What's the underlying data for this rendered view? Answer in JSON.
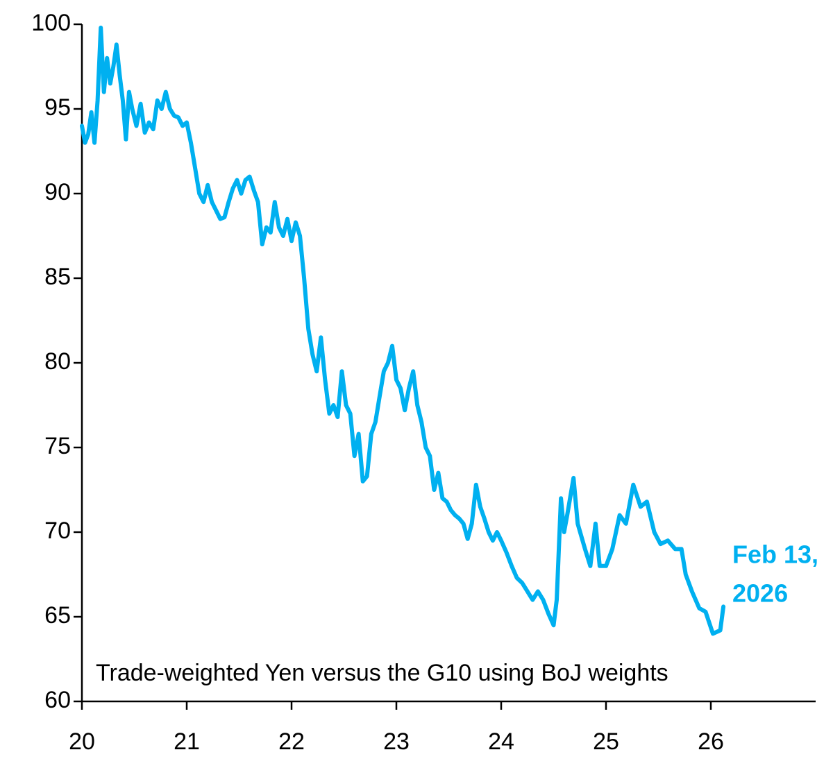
{
  "chart_data": {
    "type": "line",
    "subtitle": "Trade-weighted Yen versus the G10 using BoJ weights",
    "annotation_lines": [
      "Feb 13,",
      "2026"
    ],
    "xlim": [
      20,
      27
    ],
    "xticks": [
      20,
      21,
      22,
      23,
      24,
      25,
      26
    ],
    "ylim": [
      60,
      100
    ],
    "yticks": [
      60,
      65,
      70,
      75,
      80,
      85,
      90,
      95,
      100
    ],
    "grid": false,
    "x": [
      20.0,
      20.03,
      20.06,
      20.09,
      20.12,
      20.15,
      20.18,
      20.21,
      20.24,
      20.27,
      20.3,
      20.33,
      20.36,
      20.39,
      20.42,
      20.45,
      20.48,
      20.52,
      20.56,
      20.6,
      20.64,
      20.68,
      20.72,
      20.76,
      20.8,
      20.84,
      20.88,
      20.92,
      20.96,
      21.0,
      21.04,
      21.08,
      21.12,
      21.16,
      21.2,
      21.24,
      21.28,
      21.32,
      21.36,
      21.4,
      21.44,
      21.48,
      21.52,
      21.56,
      21.6,
      21.64,
      21.68,
      21.72,
      21.76,
      21.8,
      21.84,
      21.88,
      21.92,
      21.96,
      22.0,
      22.04,
      22.08,
      22.12,
      22.16,
      22.2,
      22.24,
      22.28,
      22.32,
      22.36,
      22.4,
      22.44,
      22.48,
      22.52,
      22.56,
      22.6,
      22.64,
      22.68,
      22.72,
      22.76,
      22.8,
      22.84,
      22.88,
      22.92,
      22.96,
      23.0,
      23.04,
      23.08,
      23.12,
      23.16,
      23.2,
      23.24,
      23.28,
      23.32,
      23.36,
      23.4,
      23.44,
      23.48,
      23.52,
      23.56,
      23.6,
      23.64,
      23.68,
      23.72,
      23.76,
      23.8,
      23.84,
      23.88,
      23.92,
      23.96,
      24.0,
      24.05,
      24.1,
      24.15,
      24.2,
      24.25,
      24.3,
      24.35,
      24.4,
      24.45,
      24.5,
      24.53,
      24.57,
      24.6,
      24.63,
      24.69,
      24.73,
      24.8,
      24.85,
      24.9,
      24.94,
      25.0,
      25.06,
      25.13,
      25.19,
      25.26,
      25.33,
      25.39,
      25.46,
      25.52,
      25.59,
      25.66,
      25.72,
      25.76,
      25.82,
      25.89,
      25.95,
      26.02,
      26.09,
      26.12
    ],
    "series": [
      {
        "color": "#00b0f0",
        "values": [
          94.0,
          93.0,
          93.5,
          94.8,
          93.0,
          95.5,
          99.8,
          96.0,
          98.0,
          96.5,
          97.5,
          98.8,
          97.0,
          95.5,
          93.2,
          96.0,
          95.0,
          94.0,
          95.3,
          93.6,
          94.2,
          93.8,
          95.5,
          95.0,
          96.0,
          95.0,
          94.6,
          94.5,
          94.0,
          94.2,
          93.0,
          91.5,
          90.0,
          89.5,
          90.5,
          89.5,
          89.0,
          88.5,
          88.6,
          89.5,
          90.3,
          90.8,
          90.0,
          90.8,
          91.0,
          90.2,
          89.5,
          87.0,
          88.0,
          87.7,
          89.5,
          88.0,
          87.5,
          88.5,
          87.2,
          88.3,
          87.5,
          85.0,
          82.0,
          80.5,
          79.5,
          81.5,
          79.0,
          77.0,
          77.5,
          76.8,
          79.5,
          77.5,
          77.0,
          74.5,
          75.8,
          73.0,
          73.3,
          75.8,
          76.5,
          78.0,
          79.5,
          80.0,
          81.0,
          79.0,
          78.5,
          77.2,
          78.5,
          79.5,
          77.5,
          76.5,
          75.0,
          74.5,
          72.5,
          73.5,
          72.0,
          71.8,
          71.3,
          71.0,
          70.8,
          70.5,
          69.6,
          70.5,
          72.8,
          71.5,
          70.8,
          70.0,
          69.5,
          70.0,
          69.5,
          68.8,
          68.0,
          67.3,
          67.0,
          66.5,
          66.0,
          66.5,
          66.0,
          65.2,
          64.5,
          66.0,
          72.0,
          70.0,
          71.0,
          73.2,
          70.5,
          69.0,
          68.0,
          70.5,
          68.0,
          68.0,
          69.0,
          71.0,
          70.5,
          72.8,
          71.5,
          71.8,
          70.0,
          69.3,
          69.5,
          69.0,
          69.0,
          67.5,
          66.5,
          65.5,
          65.3,
          64.0,
          64.2,
          65.6
        ]
      }
    ]
  }
}
